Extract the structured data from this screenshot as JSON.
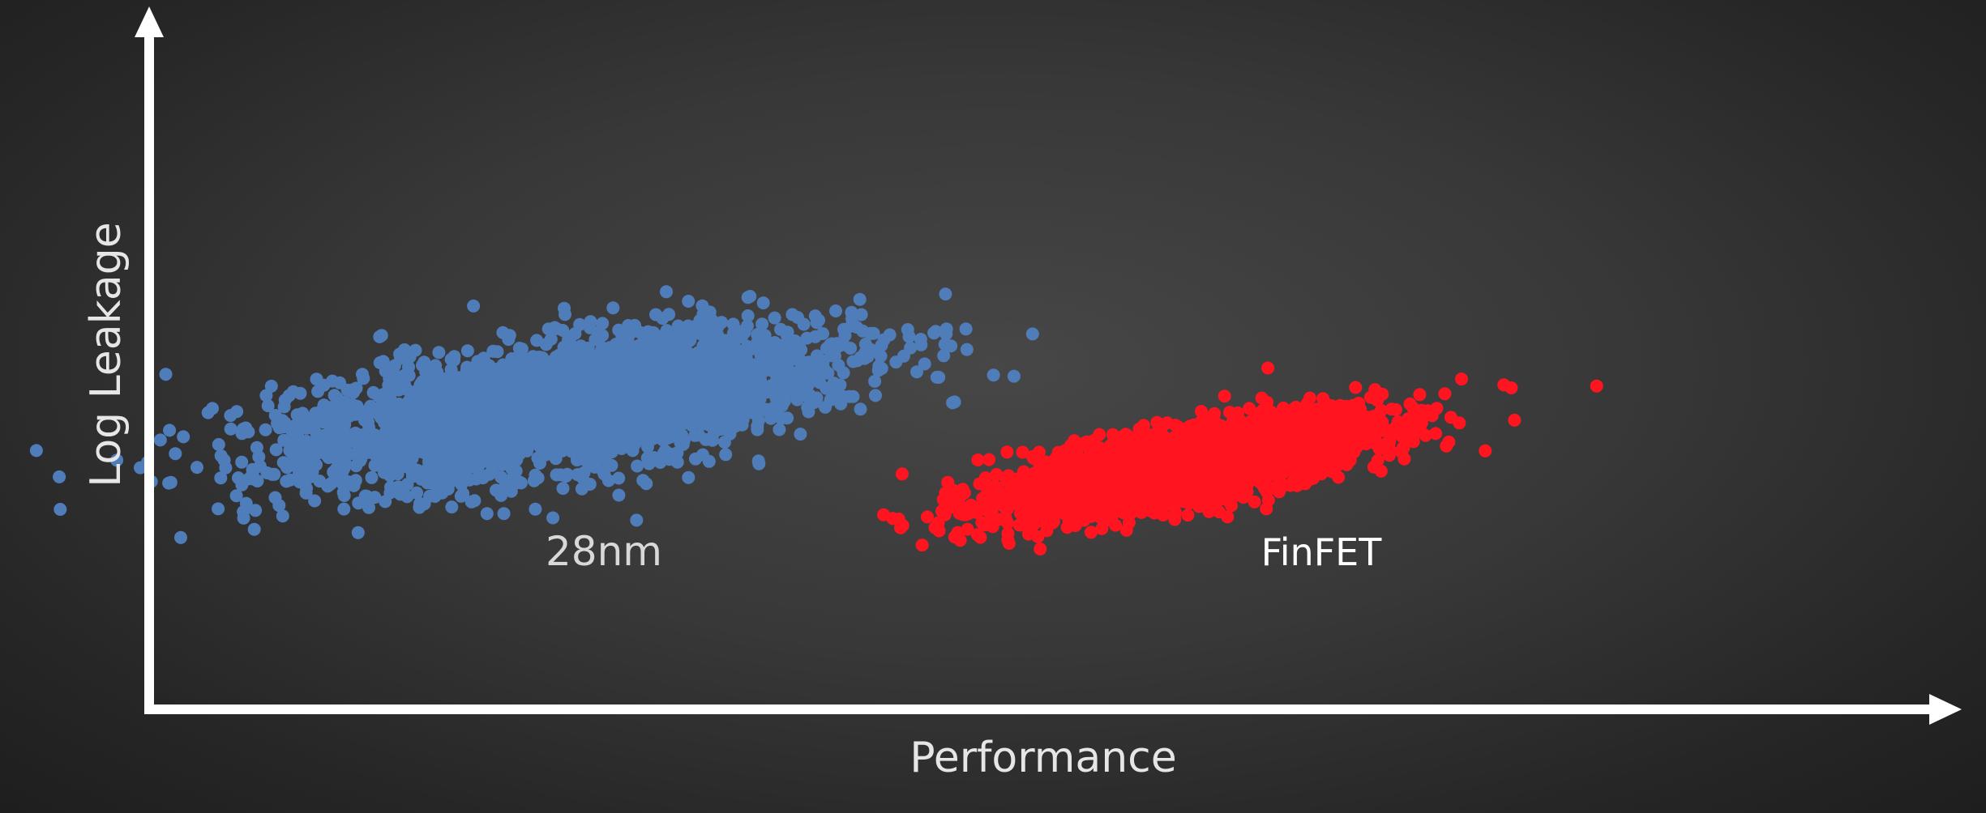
{
  "chart_data": {
    "type": "scatter",
    "title": "",
    "xlabel": "Performance",
    "ylabel": "Log Leakage",
    "xlim": [
      0,
      100
    ],
    "ylim": [
      0,
      100
    ],
    "grid": false,
    "legend": "none",
    "series": [
      {
        "name": "28nm",
        "color": "#4f7dba",
        "center": [
          23,
          45
        ],
        "slope": 0.58,
        "spread_along": 8.5,
        "spread_across": 4.2,
        "count": 3000
      },
      {
        "name": "FinFET",
        "color": "#ff1420",
        "center": [
          58,
          36
        ],
        "slope": 0.62,
        "spread_along": 6.0,
        "spread_across": 2.3,
        "count": 3000
      }
    ]
  }
}
